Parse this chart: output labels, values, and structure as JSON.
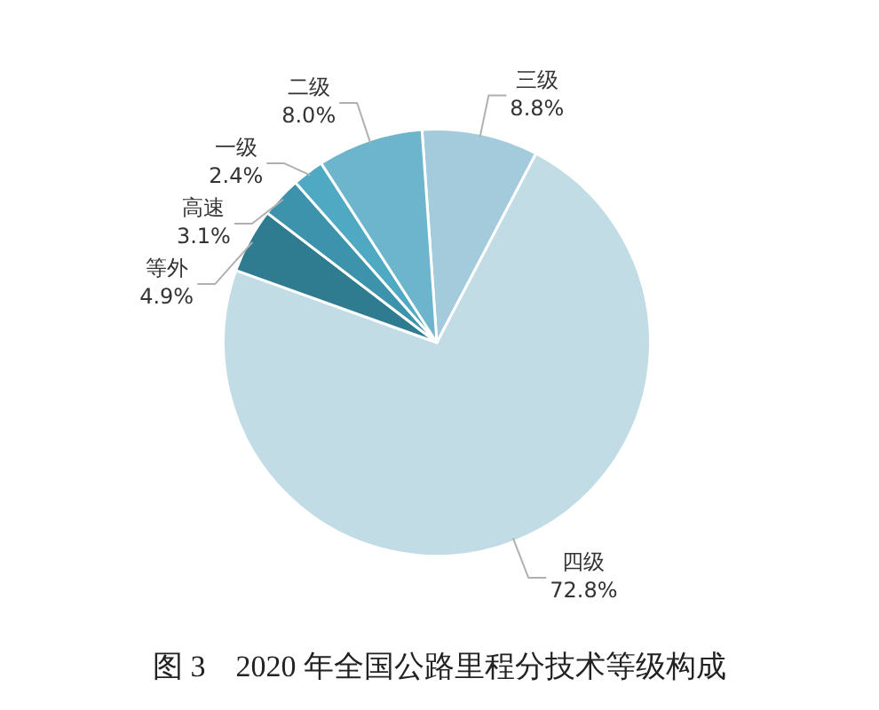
{
  "chart_data": {
    "type": "pie",
    "title": "图 3    2020 年全国公路里程分技术等级构成",
    "categories": [
      "三级",
      "四级",
      "等外",
      "高速",
      "一级",
      "二级"
    ],
    "values": [
      8.8,
      72.8,
      4.9,
      3.1,
      2.4,
      8.0
    ],
    "value_labels": [
      "8.8%",
      "72.8%",
      "4.9%",
      "3.1%",
      "2.4%",
      "8.0%"
    ],
    "colors": [
      "#a3cbdb",
      "#c2dce5",
      "#2f7c91",
      "#3d93ac",
      "#50a9c3",
      "#6db5cd"
    ],
    "legend": false
  }
}
